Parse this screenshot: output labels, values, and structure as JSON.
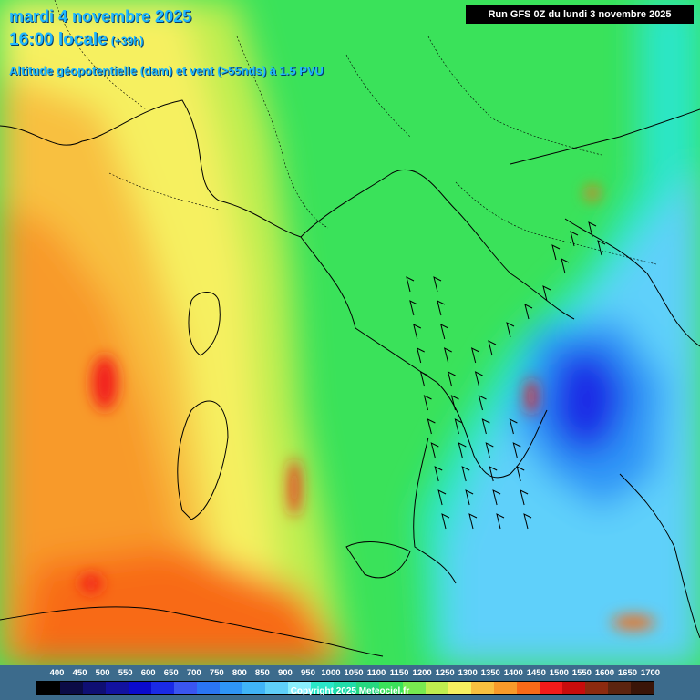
{
  "header": {
    "date": "mardi 4 novembre 2025",
    "time": "16:00 locale",
    "lead": "(+39h)",
    "parameter": "Altitude géopotentielle (dam) et vent (>55nds) à 1.5 PVU",
    "run": "Run GFS 0Z du lundi 3 novembre 2025"
  },
  "legend": {
    "labels": [
      "400",
      "450",
      "500",
      "550",
      "600",
      "650",
      "700",
      "750",
      "800",
      "850",
      "900",
      "950",
      "1000",
      "1050",
      "1100",
      "1150",
      "1200",
      "1250",
      "1300",
      "1350",
      "1400",
      "1450",
      "1500",
      "1550",
      "1600",
      "1650",
      "1700"
    ],
    "colors": [
      "#000000",
      "#0b0b45",
      "#0f0f73",
      "#1212a0",
      "#0a0acd",
      "#1a2ae6",
      "#3a55f0",
      "#2a75f5",
      "#2e95f7",
      "#40b4f8",
      "#5fd0fa",
      "#8aeefc",
      "#2ae6c8",
      "#20dcaa",
      "#26d880",
      "#3ae25a",
      "#78ea50",
      "#bfee4f",
      "#f6f060",
      "#f8c040",
      "#f89a2a",
      "#f86a18",
      "#f21a1a",
      "#c80c0c",
      "#8c2a10",
      "#5c2410",
      "#3a1508"
    ]
  },
  "map": {
    "field_colors": {
      "orange": "#f89a2a",
      "light_orange": "#f8c040",
      "yellow": "#f6f060",
      "lime": "#bfee4f",
      "green": "#3ae25a",
      "teal": "#20dcaa",
      "cyan": "#5fd0fa",
      "blue": "#2e95f7",
      "dark_blue": "#1a2ae6",
      "red": "#f21a1a"
    }
  },
  "copyright": "Copyright 2025 Meteociel.fr"
}
